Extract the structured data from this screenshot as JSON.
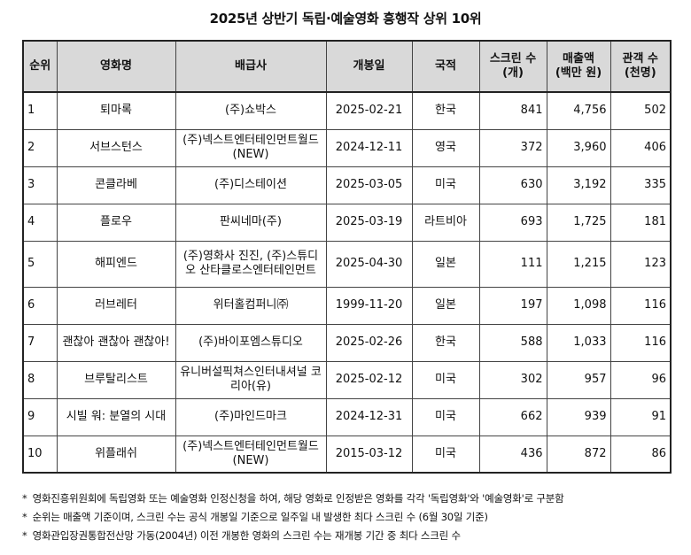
{
  "title": "2025년 상반기 독립·예술영화 흥행작 상위 10위",
  "headers": {
    "rank": "순위",
    "movie": "영화명",
    "distributor": "배급사",
    "release": "개봉일",
    "country": "국적",
    "screens_1": "스크린 수",
    "screens_2": "(개)",
    "revenue_1": "매출액",
    "revenue_2": "(백만 원)",
    "audience_1": "관객 수",
    "audience_2": "(천명)"
  },
  "rows": [
    {
      "rank": "1",
      "movie": "퇴마록",
      "distributor": "(주)쇼박스",
      "release": "2025-02-21",
      "country": "한국",
      "screens": "841",
      "revenue": "4,756",
      "audience": "502"
    },
    {
      "rank": "2",
      "movie": "서브스턴스",
      "distributor": "(주)넥스트엔터테인먼트월드(NEW)",
      "release": "2024-12-11",
      "country": "영국",
      "screens": "372",
      "revenue": "3,960",
      "audience": "406"
    },
    {
      "rank": "3",
      "movie": "콘클라베",
      "distributor": "(주)디스테이션",
      "release": "2025-03-05",
      "country": "미국",
      "screens": "630",
      "revenue": "3,192",
      "audience": "335"
    },
    {
      "rank": "4",
      "movie": "플로우",
      "distributor": "판씨네마(주)",
      "release": "2025-03-19",
      "country": "라트비아",
      "screens": "693",
      "revenue": "1,725",
      "audience": "181"
    },
    {
      "rank": "5",
      "movie": "해피엔드",
      "distributor": "(주)영화사 진진, (주)스튜디오 산타클로스엔터테인먼트",
      "release": "2025-04-30",
      "country": "일본",
      "screens": "111",
      "revenue": "1,215",
      "audience": "123"
    },
    {
      "rank": "6",
      "movie": "러브레터",
      "distributor": "위터홀컴퍼니㈜",
      "release": "1999-11-20",
      "country": "일본",
      "screens": "197",
      "revenue": "1,098",
      "audience": "116"
    },
    {
      "rank": "7",
      "movie": "괜찮아 괜찮아 괜찮아!",
      "distributor": "(주)바이포엠스튜디오",
      "release": "2025-02-26",
      "country": "한국",
      "screens": "588",
      "revenue": "1,033",
      "audience": "116"
    },
    {
      "rank": "8",
      "movie": "브루탈리스트",
      "distributor": "유니버설픽쳐스인터내셔널 코리아(유)",
      "release": "2025-02-12",
      "country": "미국",
      "screens": "302",
      "revenue": "957",
      "audience": "96"
    },
    {
      "rank": "9",
      "movie": "시빌 워: 분열의 시대",
      "distributor": "(주)마인드마크",
      "release": "2024-12-31",
      "country": "미국",
      "screens": "662",
      "revenue": "939",
      "audience": "91"
    },
    {
      "rank": "10",
      "movie": "위플래쉬",
      "distributor": "(주)넥스트엔터테인먼트월드(NEW)",
      "release": "2015-03-12",
      "country": "미국",
      "screens": "436",
      "revenue": "872",
      "audience": "86"
    }
  ],
  "notes": [
    "영화진흥위원회에 독립영화 또는 예술영화 인정신청을 하여, 해당 영화로 인정받은 영화를 각각 '독립영화'와 '예술영화'로 구분함",
    "순위는 매출액 기준이며, 스크린 수는 공식 개봉일 기준으로 일주일 내 발생한 최다 스크린 수 (6월 30일 기준)",
    "영화관입장권통합전산망 가동(2004년) 이전 개봉한 영화의 스크린 수는 재개봉 기간 중 최다 스크린 수"
  ],
  "note_marker": "*"
}
